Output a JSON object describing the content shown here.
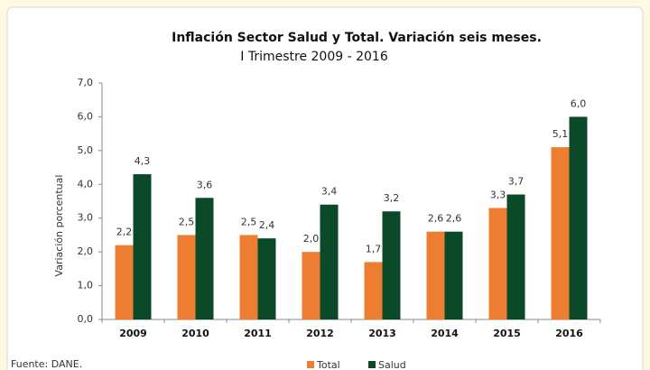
{
  "chart_data": {
    "type": "bar",
    "title": "Inflación Sector Salud y Total. Variación seis meses.",
    "subtitle": "I Trimestre 2009 - 2016",
    "y_label": "Variación porcentual",
    "source": "Fuente: DANE.",
    "categories": [
      "2009",
      "2010",
      "2011",
      "2012",
      "2013",
      "2014",
      "2015",
      "2016"
    ],
    "series": [
      {
        "name": "Total",
        "color": "#ed7d31",
        "values": [
          2.2,
          2.5,
          2.5,
          2.0,
          1.7,
          2.6,
          3.3,
          5.1
        ],
        "value_labels": [
          "2,2",
          "2,5",
          "2,5",
          "2,0",
          "1,7",
          "2,6",
          "3,3",
          "5,1"
        ]
      },
      {
        "name": "Salud",
        "color": "#0b4a28",
        "values": [
          4.3,
          3.6,
          2.4,
          3.4,
          3.2,
          2.6,
          3.7,
          6.0
        ],
        "value_labels": [
          "4,3",
          "3,6",
          "2,4",
          "3,4",
          "3,2",
          "2,6",
          "3,7",
          "6,0"
        ]
      }
    ],
    "ylim": [
      0,
      7
    ],
    "yticks": [
      {
        "value": 0,
        "label": "0,0"
      },
      {
        "value": 1,
        "label": "1,0"
      },
      {
        "value": 2,
        "label": "2,0"
      },
      {
        "value": 3,
        "label": "3,0"
      },
      {
        "value": 4,
        "label": "4,0"
      },
      {
        "value": 5,
        "label": "5,0"
      },
      {
        "value": 6,
        "label": "6,0"
      },
      {
        "value": 7,
        "label": "7,0"
      }
    ],
    "grid": false,
    "legend": "bottom"
  }
}
